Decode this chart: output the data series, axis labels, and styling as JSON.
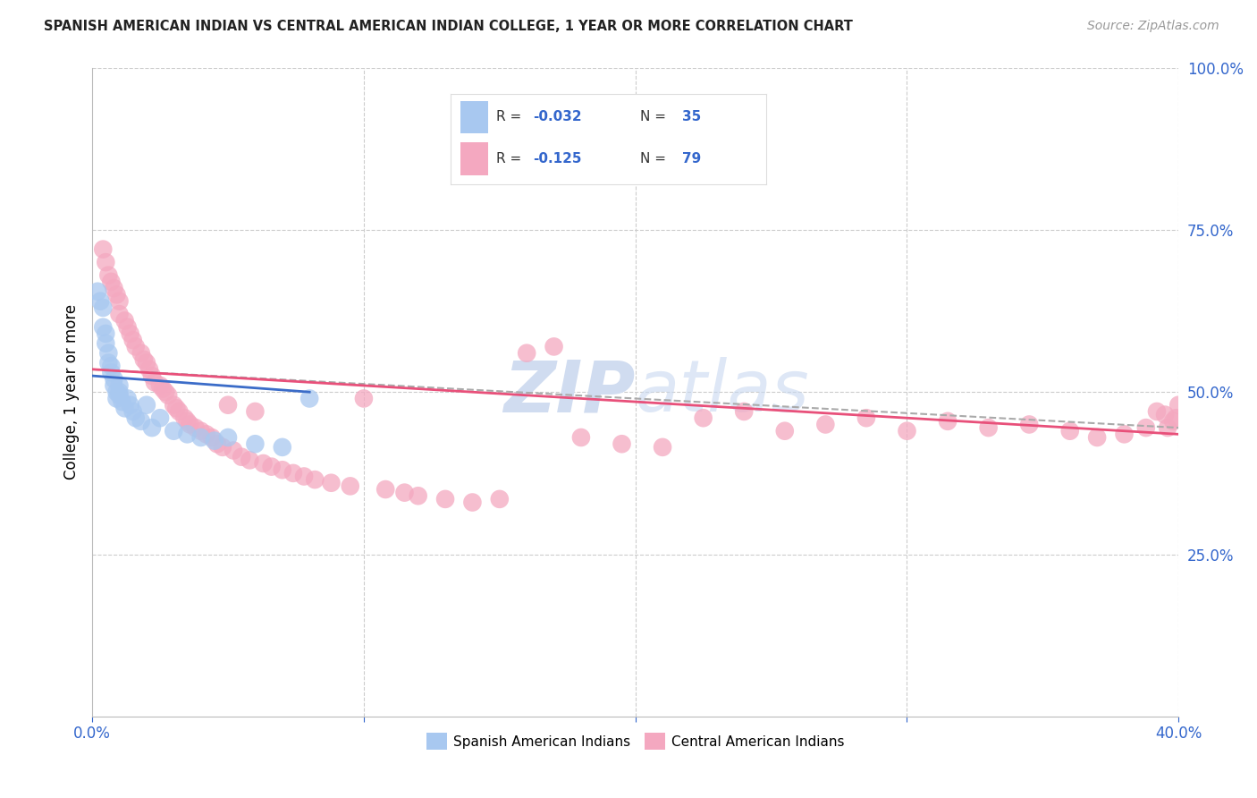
{
  "title": "SPANISH AMERICAN INDIAN VS CENTRAL AMERICAN INDIAN COLLEGE, 1 YEAR OR MORE CORRELATION CHART",
  "source": "Source: ZipAtlas.com",
  "ylabel": "College, 1 year or more",
  "x_min": 0.0,
  "x_max": 0.4,
  "y_min": 0.0,
  "y_max": 1.0,
  "blue_color": "#A8C8F0",
  "pink_color": "#F4A8C0",
  "blue_line_color": "#3B6CC8",
  "pink_line_color": "#E8507A",
  "gray_dash_color": "#AAAAAA",
  "grid_color": "#CCCCCC",
  "watermark_color": "#D0DCF0",
  "legend_R1": "-0.032",
  "legend_N1": "35",
  "legend_R2": "-0.125",
  "legend_N2": "79",
  "blue_x": [
    0.002,
    0.003,
    0.004,
    0.004,
    0.005,
    0.005,
    0.006,
    0.006,
    0.007,
    0.007,
    0.008,
    0.008,
    0.009,
    0.009,
    0.01,
    0.01,
    0.01,
    0.011,
    0.012,
    0.013,
    0.014,
    0.015,
    0.016,
    0.018,
    0.02,
    0.022,
    0.025,
    0.03,
    0.035,
    0.04,
    0.045,
    0.05,
    0.06,
    0.07,
    0.08
  ],
  "blue_y": [
    0.655,
    0.64,
    0.63,
    0.6,
    0.59,
    0.575,
    0.56,
    0.545,
    0.54,
    0.53,
    0.52,
    0.51,
    0.5,
    0.49,
    0.51,
    0.5,
    0.495,
    0.485,
    0.475,
    0.49,
    0.48,
    0.47,
    0.46,
    0.455,
    0.48,
    0.445,
    0.46,
    0.44,
    0.435,
    0.43,
    0.425,
    0.43,
    0.42,
    0.415,
    0.49
  ],
  "blue_trend": [
    0.0,
    0.08,
    0.525,
    0.5
  ],
  "pink_x": [
    0.004,
    0.005,
    0.006,
    0.007,
    0.008,
    0.009,
    0.01,
    0.01,
    0.012,
    0.013,
    0.014,
    0.015,
    0.016,
    0.018,
    0.019,
    0.02,
    0.021,
    0.022,
    0.023,
    0.025,
    0.026,
    0.027,
    0.028,
    0.03,
    0.031,
    0.032,
    0.034,
    0.035,
    0.036,
    0.038,
    0.04,
    0.042,
    0.044,
    0.046,
    0.048,
    0.05,
    0.052,
    0.055,
    0.058,
    0.06,
    0.063,
    0.066,
    0.07,
    0.074,
    0.078,
    0.082,
    0.088,
    0.095,
    0.1,
    0.108,
    0.115,
    0.12,
    0.13,
    0.14,
    0.15,
    0.16,
    0.17,
    0.18,
    0.195,
    0.21,
    0.225,
    0.24,
    0.255,
    0.27,
    0.285,
    0.3,
    0.315,
    0.33,
    0.345,
    0.36,
    0.37,
    0.38,
    0.388,
    0.392,
    0.395,
    0.396,
    0.398,
    0.399,
    0.4
  ],
  "pink_y": [
    0.72,
    0.7,
    0.68,
    0.67,
    0.66,
    0.65,
    0.64,
    0.62,
    0.61,
    0.6,
    0.59,
    0.58,
    0.57,
    0.56,
    0.55,
    0.545,
    0.535,
    0.525,
    0.515,
    0.51,
    0.505,
    0.5,
    0.495,
    0.48,
    0.475,
    0.47,
    0.46,
    0.455,
    0.45,
    0.445,
    0.44,
    0.435,
    0.43,
    0.42,
    0.415,
    0.48,
    0.41,
    0.4,
    0.395,
    0.47,
    0.39,
    0.385,
    0.38,
    0.375,
    0.37,
    0.365,
    0.36,
    0.355,
    0.49,
    0.35,
    0.345,
    0.34,
    0.335,
    0.33,
    0.335,
    0.56,
    0.57,
    0.43,
    0.42,
    0.415,
    0.46,
    0.47,
    0.44,
    0.45,
    0.46,
    0.44,
    0.455,
    0.445,
    0.45,
    0.44,
    0.43,
    0.435,
    0.445,
    0.47,
    0.465,
    0.445,
    0.455,
    0.46,
    0.48
  ],
  "pink_trend": [
    0.0,
    0.4,
    0.535,
    0.435
  ],
  "gray_dash_trend": [
    0.0,
    0.4,
    0.535,
    0.445
  ]
}
